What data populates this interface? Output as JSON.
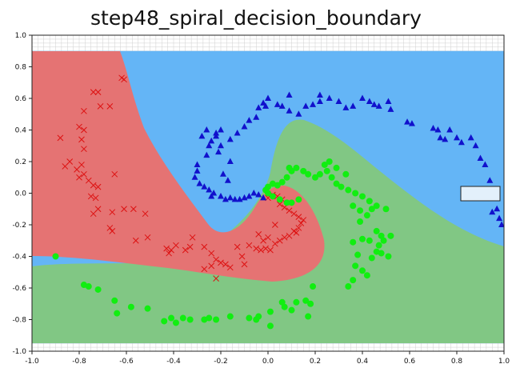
{
  "chart_data": {
    "type": "scatter",
    "title": "step48_spiral_decision_boundary",
    "xlabel": "",
    "ylabel": "",
    "xlim": [
      -1.0,
      1.0
    ],
    "ylim": [
      -1.0,
      1.0
    ],
    "grid": true,
    "x_ticks": [
      "-1.0",
      "-0.8",
      "-0.6",
      "-0.4",
      "-0.2",
      "0.0",
      "0.2",
      "0.4",
      "0.6",
      "0.8",
      "1.0"
    ],
    "y_ticks": [
      "1.0",
      "0.8",
      "0.6",
      "0.4",
      "0.2",
      "0.0",
      "-0.2",
      "-0.4",
      "-0.6",
      "-0.8",
      "-1.0"
    ],
    "regions": [
      {
        "class": "red",
        "color": "#e57373"
      },
      {
        "class": "blue",
        "color": "#64b5f6"
      },
      {
        "class": "green",
        "color": "#81c784"
      }
    ],
    "series": [
      {
        "marker": "x",
        "color": "#dd1111",
        "points": [
          [
            -0.88,
            0.35
          ],
          [
            -0.8,
            0.42
          ],
          [
            -0.78,
            0.4
          ],
          [
            -0.79,
            0.34
          ],
          [
            -0.78,
            0.28
          ],
          [
            -0.79,
            0.18
          ],
          [
            -0.81,
            0.15
          ],
          [
            -0.84,
            0.2
          ],
          [
            -0.86,
            0.17
          ],
          [
            -0.78,
            0.12
          ],
          [
            -0.8,
            0.1
          ],
          [
            -0.76,
            0.08
          ],
          [
            -0.74,
            0.05
          ],
          [
            -0.72,
            0.04
          ],
          [
            -0.75,
            -0.02
          ],
          [
            -0.73,
            -0.03
          ],
          [
            -0.72,
            -0.1
          ],
          [
            -0.74,
            -0.13
          ],
          [
            -0.74,
            0.64
          ],
          [
            -0.72,
            0.64
          ],
          [
            -0.78,
            0.52
          ],
          [
            -0.71,
            0.55
          ],
          [
            -0.67,
            0.55
          ],
          [
            -0.62,
            0.73
          ],
          [
            -0.61,
            0.72
          ],
          [
            -0.65,
            0.12
          ],
          [
            -0.66,
            -0.12
          ],
          [
            -0.67,
            -0.22
          ],
          [
            -0.66,
            -0.24
          ],
          [
            -0.61,
            -0.1
          ],
          [
            -0.57,
            -0.1
          ],
          [
            -0.52,
            -0.13
          ],
          [
            -0.56,
            -0.3
          ],
          [
            -0.51,
            -0.28
          ],
          [
            -0.43,
            -0.35
          ],
          [
            -0.42,
            -0.38
          ],
          [
            -0.41,
            -0.36
          ],
          [
            -0.39,
            -0.33
          ],
          [
            -0.35,
            -0.36
          ],
          [
            -0.33,
            -0.34
          ],
          [
            -0.32,
            -0.28
          ],
          [
            -0.27,
            -0.34
          ],
          [
            -0.24,
            -0.38
          ],
          [
            -0.22,
            -0.42
          ],
          [
            -0.2,
            -0.44
          ],
          [
            -0.18,
            -0.45
          ],
          [
            -0.16,
            -0.47
          ],
          [
            -0.22,
            -0.54
          ],
          [
            -0.27,
            -0.48
          ],
          [
            -0.24,
            -0.46
          ],
          [
            -0.1,
            -0.45
          ],
          [
            -0.13,
            -0.34
          ],
          [
            -0.11,
            -0.4
          ],
          [
            -0.08,
            -0.33
          ],
          [
            -0.05,
            -0.35
          ],
          [
            -0.03,
            -0.36
          ],
          [
            -0.01,
            -0.35
          ],
          [
            0.01,
            -0.36
          ],
          [
            0.03,
            -0.32
          ],
          [
            0.05,
            -0.3
          ],
          [
            0.07,
            -0.28
          ],
          [
            0.09,
            -0.27
          ],
          [
            0.11,
            -0.24
          ],
          [
            0.12,
            -0.25
          ],
          [
            0.13,
            -0.22
          ],
          [
            0.14,
            -0.19
          ],
          [
            0.15,
            -0.17
          ],
          [
            0.13,
            -0.15
          ],
          [
            0.11,
            -0.13
          ],
          [
            0.09,
            -0.11
          ],
          [
            0.07,
            -0.09
          ],
          [
            0.05,
            -0.07
          ],
          [
            0.06,
            -0.04
          ],
          [
            0.04,
            -0.02
          ],
          [
            0.02,
            -0.01
          ],
          [
            0.0,
            -0.03
          ],
          [
            0.03,
            -0.2
          ],
          [
            0.0,
            -0.28
          ],
          [
            -0.02,
            -0.3
          ],
          [
            -0.04,
            -0.26
          ]
        ]
      },
      {
        "marker": "triangle",
        "color": "#1111cc",
        "points": [
          [
            -0.3,
            0.18
          ],
          [
            -0.26,
            0.24
          ],
          [
            -0.24,
            0.33
          ],
          [
            -0.22,
            0.38
          ],
          [
            -0.2,
            0.4
          ],
          [
            -0.28,
            0.36
          ],
          [
            -0.26,
            0.4
          ],
          [
            -0.3,
            0.14
          ],
          [
            -0.31,
            0.1
          ],
          [
            -0.29,
            0.06
          ],
          [
            -0.27,
            0.04
          ],
          [
            -0.25,
            0.02
          ],
          [
            -0.23,
            0.0
          ],
          [
            -0.24,
            -0.02
          ],
          [
            -0.2,
            -0.02
          ],
          [
            -0.18,
            -0.04
          ],
          [
            -0.16,
            -0.03
          ],
          [
            -0.14,
            -0.04
          ],
          [
            -0.12,
            -0.04
          ],
          [
            -0.1,
            -0.03
          ],
          [
            -0.08,
            -0.02
          ],
          [
            -0.06,
            0.0
          ],
          [
            -0.04,
            -0.01
          ],
          [
            -0.02,
            -0.03
          ],
          [
            -0.2,
            0.3
          ],
          [
            -0.16,
            0.34
          ],
          [
            -0.13,
            0.38
          ],
          [
            -0.1,
            0.42
          ],
          [
            -0.08,
            0.46
          ],
          [
            -0.05,
            0.48
          ],
          [
            -0.04,
            0.54
          ],
          [
            -0.02,
            0.57
          ],
          [
            0.0,
            0.6
          ],
          [
            -0.01,
            0.55
          ],
          [
            0.04,
            0.56
          ],
          [
            0.06,
            0.55
          ],
          [
            0.09,
            0.52
          ],
          [
            0.13,
            0.5
          ],
          [
            0.16,
            0.55
          ],
          [
            0.19,
            0.56
          ],
          [
            0.22,
            0.58
          ],
          [
            0.26,
            0.6
          ],
          [
            0.3,
            0.58
          ],
          [
            0.33,
            0.54
          ],
          [
            0.36,
            0.55
          ],
          [
            0.4,
            0.6
          ],
          [
            0.43,
            0.58
          ],
          [
            0.45,
            0.56
          ],
          [
            0.47,
            0.55
          ],
          [
            0.51,
            0.58
          ],
          [
            0.52,
            0.53
          ],
          [
            0.59,
            0.45
          ],
          [
            0.61,
            0.44
          ],
          [
            0.7,
            0.41
          ],
          [
            0.72,
            0.4
          ],
          [
            0.73,
            0.35
          ],
          [
            0.75,
            0.34
          ],
          [
            0.77,
            0.4
          ],
          [
            0.8,
            0.35
          ],
          [
            0.82,
            0.32
          ],
          [
            0.86,
            0.35
          ],
          [
            0.88,
            0.3
          ],
          [
            0.9,
            0.22
          ],
          [
            0.92,
            0.18
          ],
          [
            0.94,
            0.08
          ],
          [
            0.96,
            0.02
          ],
          [
            0.97,
            -0.1
          ],
          [
            0.95,
            -0.12
          ],
          [
            0.98,
            -0.16
          ],
          [
            0.99,
            -0.2
          ],
          [
            -0.16,
            0.2
          ],
          [
            -0.19,
            0.12
          ],
          [
            -0.17,
            0.08
          ],
          [
            -0.21,
            0.26
          ],
          [
            -0.25,
            0.3
          ],
          [
            -0.22,
            0.36
          ],
          [
            0.09,
            0.62
          ],
          [
            0.22,
            0.62
          ]
        ]
      },
      {
        "marker": "circle",
        "color": "#11ee11",
        "points": [
          [
            -0.9,
            -0.4
          ],
          [
            -0.78,
            -0.58
          ],
          [
            -0.76,
            -0.59
          ],
          [
            -0.72,
            -0.61
          ],
          [
            -0.65,
            -0.68
          ],
          [
            -0.64,
            -0.76
          ],
          [
            -0.58,
            -0.72
          ],
          [
            -0.51,
            -0.73
          ],
          [
            -0.44,
            -0.81
          ],
          [
            -0.41,
            -0.79
          ],
          [
            -0.39,
            -0.82
          ],
          [
            -0.36,
            -0.79
          ],
          [
            -0.33,
            -0.8
          ],
          [
            -0.27,
            -0.8
          ],
          [
            -0.25,
            -0.79
          ],
          [
            -0.22,
            -0.8
          ],
          [
            -0.16,
            -0.78
          ],
          [
            -0.08,
            -0.79
          ],
          [
            -0.05,
            -0.8
          ],
          [
            -0.04,
            -0.78
          ],
          [
            0.01,
            -0.84
          ],
          [
            0.01,
            -0.75
          ],
          [
            0.06,
            -0.69
          ],
          [
            0.07,
            -0.72
          ],
          [
            0.1,
            -0.74
          ],
          [
            0.12,
            -0.69
          ],
          [
            0.16,
            -0.68
          ],
          [
            0.18,
            -0.7
          ],
          [
            0.17,
            -0.78
          ],
          [
            0.19,
            -0.59
          ],
          [
            0.34,
            -0.59
          ],
          [
            0.36,
            -0.55
          ],
          [
            0.37,
            -0.46
          ],
          [
            0.4,
            -0.49
          ],
          [
            0.42,
            -0.52
          ],
          [
            0.44,
            -0.41
          ],
          [
            0.46,
            -0.37
          ],
          [
            0.47,
            -0.33
          ],
          [
            0.49,
            -0.3
          ],
          [
            0.48,
            -0.27
          ],
          [
            0.46,
            -0.24
          ],
          [
            0.43,
            -0.3
          ],
          [
            0.4,
            -0.29
          ],
          [
            0.36,
            -0.31
          ],
          [
            0.39,
            -0.18
          ],
          [
            0.42,
            -0.14
          ],
          [
            0.44,
            -0.1
          ],
          [
            0.46,
            -0.08
          ],
          [
            0.43,
            -0.05
          ],
          [
            0.4,
            -0.02
          ],
          [
            0.37,
            0.0
          ],
          [
            0.34,
            0.02
          ],
          [
            0.31,
            0.04
          ],
          [
            0.29,
            0.06
          ],
          [
            0.27,
            0.1
          ],
          [
            0.25,
            0.14
          ],
          [
            0.24,
            0.18
          ],
          [
            0.22,
            0.12
          ],
          [
            0.2,
            0.1
          ],
          [
            0.17,
            0.12
          ],
          [
            0.15,
            0.14
          ],
          [
            0.12,
            0.16
          ],
          [
            0.1,
            0.14
          ],
          [
            0.08,
            0.1
          ],
          [
            0.06,
            0.07
          ],
          [
            0.04,
            0.05
          ],
          [
            0.02,
            0.06
          ],
          [
            0.0,
            0.04
          ],
          [
            -0.01,
            0.02
          ],
          [
            0.0,
            0.0
          ],
          [
            0.02,
            -0.02
          ],
          [
            0.05,
            -0.04
          ],
          [
            0.08,
            -0.06
          ],
          [
            0.1,
            -0.06
          ],
          [
            0.13,
            -0.04
          ],
          [
            0.26,
            0.2
          ],
          [
            0.29,
            0.16
          ],
          [
            0.33,
            0.12
          ],
          [
            0.36,
            -0.08
          ],
          [
            0.39,
            -0.11
          ],
          [
            0.48,
            -0.38
          ],
          [
            0.51,
            -0.4
          ],
          [
            0.52,
            -0.27
          ],
          [
            0.38,
            -0.39
          ],
          [
            0.5,
            -0.1
          ],
          [
            0.09,
            0.16
          ]
        ]
      }
    ],
    "legend_box": {
      "present": true,
      "placement": "right",
      "text": ""
    }
  }
}
